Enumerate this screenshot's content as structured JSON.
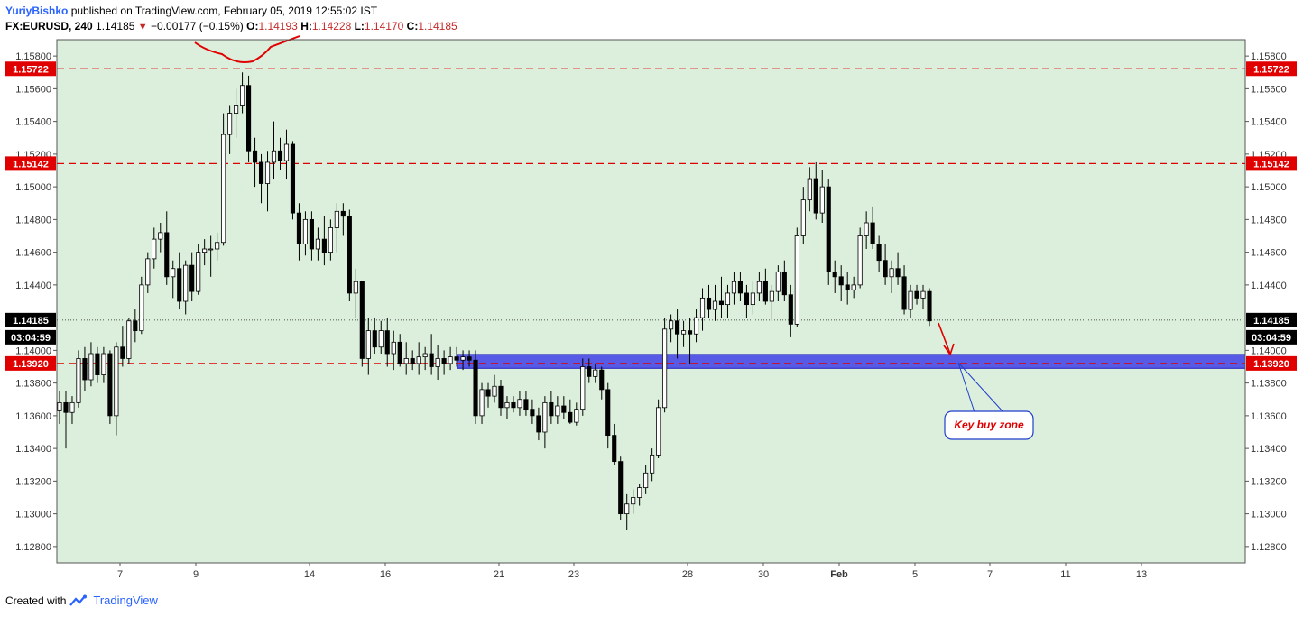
{
  "header": {
    "author": "YuriyBishko",
    "published": "published on TradingView.com, February 05, 2019 12:55:02 IST",
    "symbol": "FX:EURUSD, 240",
    "last": "1.14185",
    "change": "−0.00177 (−0.15%)",
    "o_label": "O:",
    "o_value": "1.14193",
    "h_label": "H:",
    "h_value": "1.14228",
    "l_label": "L:",
    "l_value": "1.14170",
    "c_label": "C:",
    "c_value": "1.14185"
  },
  "footer": {
    "created_with": "Created with",
    "brand": "TradingView"
  },
  "colors": {
    "background": "#dcefdc",
    "red_line": "#e00000",
    "zone_fill": "#3f3fe6",
    "candle_up": "#ffffff",
    "candle_down": "#000000",
    "callout_border": "#1e3fcc",
    "callout_text": "#e00000"
  },
  "chart_data": {
    "type": "candlestick",
    "ylim": [
      1.127,
      1.159
    ],
    "y_ticks": [
      "1.15800",
      "1.15600",
      "1.15400",
      "1.15200",
      "1.15000",
      "1.14800",
      "1.14600",
      "1.14400",
      "1.14000",
      "1.13800",
      "1.13600",
      "1.13400",
      "1.13200",
      "1.13000",
      "1.12800"
    ],
    "x_ticks": [
      "7",
      "9",
      "14",
      "16",
      "21",
      "23",
      "28",
      "30",
      "Feb",
      "5",
      "7",
      "11",
      "13"
    ],
    "price_labels": [
      {
        "text": "1.15722",
        "value": 1.15722,
        "kind": "level"
      },
      {
        "text": "1.15142",
        "value": 1.15142,
        "kind": "level"
      },
      {
        "text": "1.14185",
        "value": 1.14185,
        "kind": "last"
      },
      {
        "text": "03:04:59",
        "value": 1.1408,
        "kind": "countdown"
      },
      {
        "text": "1.13920",
        "value": 1.1392,
        "kind": "level"
      }
    ],
    "horizontal_levels": [
      1.15722,
      1.15142,
      1.1392
    ],
    "last_price": 1.14185,
    "buy_zone": {
      "top": 1.13975,
      "bottom": 1.1389,
      "label": "Key buy zone"
    },
    "candles": [
      [
        1.1363,
        1.1375,
        1.1355,
        1.1368
      ],
      [
        1.1368,
        1.1375,
        1.134,
        1.1362
      ],
      [
        1.1362,
        1.1372,
        1.1355,
        1.1368
      ],
      [
        1.1368,
        1.14,
        1.1365,
        1.1395
      ],
      [
        1.1395,
        1.1402,
        1.1375,
        1.1382
      ],
      [
        1.1382,
        1.1405,
        1.1378,
        1.1398
      ],
      [
        1.1398,
        1.1402,
        1.138,
        1.1385
      ],
      [
        1.1385,
        1.1402,
        1.138,
        1.1398
      ],
      [
        1.1398,
        1.14,
        1.1355,
        1.136
      ],
      [
        1.136,
        1.1405,
        1.1348,
        1.1402
      ],
      [
        1.1402,
        1.1415,
        1.139,
        1.1395
      ],
      [
        1.1395,
        1.142,
        1.1392,
        1.1418
      ],
      [
        1.1418,
        1.1425,
        1.1405,
        1.1412
      ],
      [
        1.1412,
        1.1445,
        1.141,
        1.144
      ],
      [
        1.144,
        1.146,
        1.1435,
        1.1456
      ],
      [
        1.1456,
        1.1475,
        1.145,
        1.1468
      ],
      [
        1.1468,
        1.1478,
        1.146,
        1.1472
      ],
      [
        1.1472,
        1.1485,
        1.144,
        1.1445
      ],
      [
        1.1445,
        1.1455,
        1.1432,
        1.145
      ],
      [
        1.145,
        1.146,
        1.1425,
        1.143
      ],
      [
        1.143,
        1.1455,
        1.1422,
        1.1452
      ],
      [
        1.1452,
        1.146,
        1.143,
        1.1436
      ],
      [
        1.1436,
        1.1465,
        1.1434,
        1.146
      ],
      [
        1.146,
        1.1468,
        1.1452,
        1.1462
      ],
      [
        1.1462,
        1.147,
        1.1445,
        1.1462
      ],
      [
        1.1462,
        1.1472,
        1.1455,
        1.1466
      ],
      [
        1.1466,
        1.1545,
        1.1464,
        1.1532
      ],
      [
        1.1532,
        1.155,
        1.152,
        1.1545
      ],
      [
        1.1545,
        1.156,
        1.153,
        1.155
      ],
      [
        1.155,
        1.157,
        1.1545,
        1.1562
      ],
      [
        1.1562,
        1.1568,
        1.1515,
        1.1522
      ],
      [
        1.1522,
        1.153,
        1.15,
        1.1515
      ],
      [
        1.1515,
        1.152,
        1.149,
        1.1502
      ],
      [
        1.1502,
        1.1522,
        1.1485,
        1.1515
      ],
      [
        1.1515,
        1.154,
        1.1505,
        1.1522
      ],
      [
        1.1522,
        1.153,
        1.151,
        1.1516
      ],
      [
        1.1516,
        1.1535,
        1.1505,
        1.1526
      ],
      [
        1.1526,
        1.1528,
        1.148,
        1.1484
      ],
      [
        1.1484,
        1.149,
        1.1455,
        1.1465
      ],
      [
        1.1465,
        1.1485,
        1.1458,
        1.148
      ],
      [
        1.148,
        1.1485,
        1.1455,
        1.1462
      ],
      [
        1.1462,
        1.1475,
        1.1455,
        1.1468
      ],
      [
        1.1468,
        1.1482,
        1.1452,
        1.146
      ],
      [
        1.146,
        1.148,
        1.1455,
        1.1475
      ],
      [
        1.1475,
        1.149,
        1.146,
        1.1485
      ],
      [
        1.1485,
        1.149,
        1.147,
        1.1482
      ],
      [
        1.1482,
        1.1486,
        1.143,
        1.1435
      ],
      [
        1.1435,
        1.145,
        1.142,
        1.1442
      ],
      [
        1.1442,
        1.1442,
        1.139,
        1.1395
      ],
      [
        1.1395,
        1.142,
        1.1385,
        1.1412
      ],
      [
        1.1412,
        1.142,
        1.1398,
        1.1402
      ],
      [
        1.1402,
        1.1418,
        1.1398,
        1.1412
      ],
      [
        1.1412,
        1.142,
        1.139,
        1.1398
      ],
      [
        1.1398,
        1.1412,
        1.1388,
        1.1405
      ],
      [
        1.1405,
        1.141,
        1.139,
        1.1392
      ],
      [
        1.1392,
        1.1405,
        1.1385,
        1.1395
      ],
      [
        1.1395,
        1.14,
        1.1388,
        1.1392
      ],
      [
        1.1392,
        1.1405,
        1.1385,
        1.1396
      ],
      [
        1.1396,
        1.1402,
        1.1388,
        1.1398
      ],
      [
        1.1398,
        1.141,
        1.1385,
        1.139
      ],
      [
        1.139,
        1.1403,
        1.1382,
        1.1395
      ],
      [
        1.1395,
        1.14,
        1.1385,
        1.1392
      ],
      [
        1.1392,
        1.1402,
        1.1388,
        1.1396
      ],
      [
        1.1396,
        1.1402,
        1.139,
        1.1394
      ],
      [
        1.1394,
        1.14,
        1.1388,
        1.1396
      ],
      [
        1.1396,
        1.14,
        1.139,
        1.1394
      ],
      [
        1.1394,
        1.14,
        1.1355,
        1.136
      ],
      [
        1.136,
        1.138,
        1.1355,
        1.1376
      ],
      [
        1.1376,
        1.138,
        1.1365,
        1.1372
      ],
      [
        1.1372,
        1.1385,
        1.1368,
        1.1378
      ],
      [
        1.1378,
        1.1382,
        1.136,
        1.1365
      ],
      [
        1.1365,
        1.1372,
        1.1358,
        1.1368
      ],
      [
        1.1368,
        1.1372,
        1.1362,
        1.1365
      ],
      [
        1.1365,
        1.1375,
        1.136,
        1.137
      ],
      [
        1.137,
        1.1375,
        1.136,
        1.1364
      ],
      [
        1.1364,
        1.137,
        1.1355,
        1.136
      ],
      [
        1.136,
        1.1365,
        1.1345,
        1.135
      ],
      [
        1.135,
        1.1372,
        1.134,
        1.1368
      ],
      [
        1.1368,
        1.1375,
        1.1355,
        1.136
      ],
      [
        1.136,
        1.1372,
        1.1355,
        1.1366
      ],
      [
        1.1366,
        1.1372,
        1.1358,
        1.1362
      ],
      [
        1.1362,
        1.137,
        1.1355,
        1.1356
      ],
      [
        1.1356,
        1.1368,
        1.1354,
        1.1364
      ],
      [
        1.1364,
        1.1395,
        1.136,
        1.139
      ],
      [
        1.139,
        1.1395,
        1.138,
        1.1384
      ],
      [
        1.1384,
        1.1392,
        1.138,
        1.1388
      ],
      [
        1.1388,
        1.139,
        1.137,
        1.1376
      ],
      [
        1.1376,
        1.138,
        1.134,
        1.1348
      ],
      [
        1.1348,
        1.1355,
        1.133,
        1.1332
      ],
      [
        1.1332,
        1.1335,
        1.1296,
        1.13
      ],
      [
        1.13,
        1.1312,
        1.129,
        1.1306
      ],
      [
        1.1306,
        1.1315,
        1.13,
        1.131
      ],
      [
        1.131,
        1.1318,
        1.1305,
        1.1316
      ],
      [
        1.1316,
        1.133,
        1.1312,
        1.1325
      ],
      [
        1.1325,
        1.134,
        1.132,
        1.1336
      ],
      [
        1.1336,
        1.137,
        1.1334,
        1.1365
      ],
      [
        1.1365,
        1.142,
        1.1362,
        1.1413
      ],
      [
        1.1413,
        1.1422,
        1.1405,
        1.1418
      ],
      [
        1.1418,
        1.1425,
        1.1395,
        1.141
      ],
      [
        1.141,
        1.1418,
        1.1402,
        1.1412
      ],
      [
        1.1412,
        1.142,
        1.1392,
        1.141
      ],
      [
        1.141,
        1.1425,
        1.1405,
        1.142
      ],
      [
        1.142,
        1.1438,
        1.1412,
        1.1432
      ],
      [
        1.1432,
        1.144,
        1.142,
        1.1425
      ],
      [
        1.1425,
        1.144,
        1.1418,
        1.143
      ],
      [
        1.143,
        1.1445,
        1.142,
        1.1428
      ],
      [
        1.1428,
        1.144,
        1.142,
        1.1435
      ],
      [
        1.1435,
        1.1448,
        1.1428,
        1.1442
      ],
      [
        1.1442,
        1.1448,
        1.143,
        1.1435
      ],
      [
        1.1435,
        1.144,
        1.142,
        1.1428
      ],
      [
        1.1428,
        1.1442,
        1.1422,
        1.1435
      ],
      [
        1.1435,
        1.1448,
        1.143,
        1.1442
      ],
      [
        1.1442,
        1.145,
        1.1428,
        1.143
      ],
      [
        1.143,
        1.144,
        1.1418,
        1.1436
      ],
      [
        1.1436,
        1.1452,
        1.143,
        1.1448
      ],
      [
        1.1448,
        1.1455,
        1.143,
        1.1434
      ],
      [
        1.1434,
        1.144,
        1.1408,
        1.1416
      ],
      [
        1.1416,
        1.1475,
        1.1414,
        1.147
      ],
      [
        1.147,
        1.15,
        1.1465,
        1.1492
      ],
      [
        1.1492,
        1.1512,
        1.1485,
        1.1505
      ],
      [
        1.1505,
        1.1515,
        1.148,
        1.1484
      ],
      [
        1.1484,
        1.151,
        1.1478,
        1.15
      ],
      [
        1.15,
        1.1505,
        1.144,
        1.1448
      ],
      [
        1.1448,
        1.1455,
        1.1435,
        1.1445
      ],
      [
        1.1445,
        1.1452,
        1.143,
        1.144
      ],
      [
        1.144,
        1.1448,
        1.1428,
        1.1437
      ],
      [
        1.1437,
        1.1445,
        1.1432,
        1.144
      ],
      [
        1.144,
        1.1475,
        1.1438,
        1.147
      ],
      [
        1.147,
        1.1485,
        1.1462,
        1.1478
      ],
      [
        1.1478,
        1.1488,
        1.1462,
        1.1465
      ],
      [
        1.1465,
        1.147,
        1.1448,
        1.1455
      ],
      [
        1.1455,
        1.1465,
        1.144,
        1.1445
      ],
      [
        1.1445,
        1.1455,
        1.1435,
        1.145
      ],
      [
        1.145,
        1.146,
        1.144,
        1.1445
      ],
      [
        1.1445,
        1.1452,
        1.1422,
        1.1425
      ],
      [
        1.1425,
        1.144,
        1.142,
        1.1436
      ],
      [
        1.1436,
        1.144,
        1.1428,
        1.1432
      ],
      [
        1.1432,
        1.144,
        1.1425,
        1.1436
      ],
      [
        1.1436,
        1.1438,
        1.1415,
        1.1418
      ]
    ]
  }
}
